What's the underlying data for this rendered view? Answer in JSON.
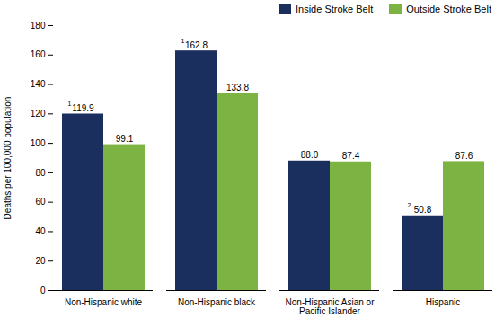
{
  "chart_data": {
    "type": "bar",
    "categories": [
      "Non-Hispanic white",
      "Non-Hispanic black",
      "Non-Hispanic Asian or Pacific Islander",
      "Hispanic"
    ],
    "series": [
      {
        "name": "Inside Stroke Belt",
        "color": "#1b2f5e",
        "values": [
          119.9,
          162.8,
          88.0,
          50.8
        ],
        "value_labels": [
          "119.9",
          "162.8",
          "88.0",
          "50.8"
        ],
        "footnote_marks": [
          "1",
          "1",
          null,
          "2"
        ]
      },
      {
        "name": "Outside Stroke Belt",
        "color": "#7cb342",
        "values": [
          99.1,
          133.8,
          87.4,
          87.6
        ],
        "value_labels": [
          "99.1",
          "133.8",
          "87.4",
          "87.6"
        ]
      }
    ],
    "y_label": "Deaths per 100,000 population",
    "ylim": [
      0,
      180
    ],
    "yticks": [
      0,
      20,
      40,
      60,
      80,
      100,
      120,
      140,
      160,
      180
    ],
    "grid": false,
    "legend": "top-right",
    "data_labels": true
  }
}
